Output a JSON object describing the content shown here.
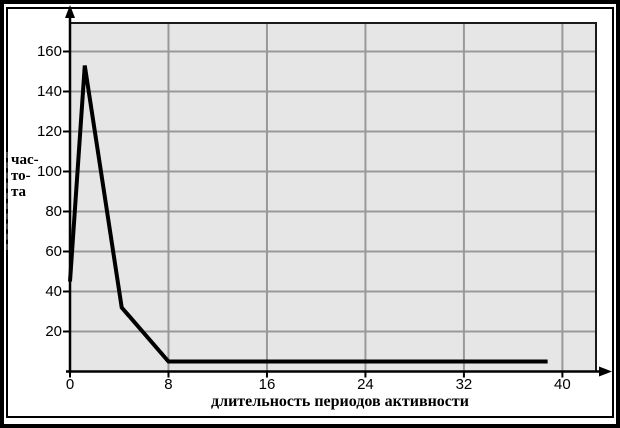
{
  "window": {
    "background": "#ffffff",
    "frame_color": "#000000"
  },
  "chart_data": {
    "type": "line",
    "title": "",
    "xlabel": "длительность периодов активности",
    "ylabel": "частота",
    "ylabel_lines": [
      "час-",
      "то-",
      "та"
    ],
    "x": [
      0,
      1.2,
      4.2,
      8,
      38.8
    ],
    "y": [
      45,
      153,
      32,
      5,
      5
    ],
    "xticks": [
      0,
      8,
      16,
      24,
      32,
      40
    ],
    "yticks": [
      20,
      40,
      60,
      80,
      100,
      120,
      140,
      160
    ],
    "xlim": [
      0,
      42.7
    ],
    "ylim": [
      0,
      174
    ],
    "grid": true,
    "legend": "none",
    "plot_bg_color": "#e6e6e6",
    "grid_color": "#999999",
    "axis_color": "#000000",
    "plot_border_color": "#1a1a1a",
    "line_color": "#000000",
    "line_width": 4
  }
}
